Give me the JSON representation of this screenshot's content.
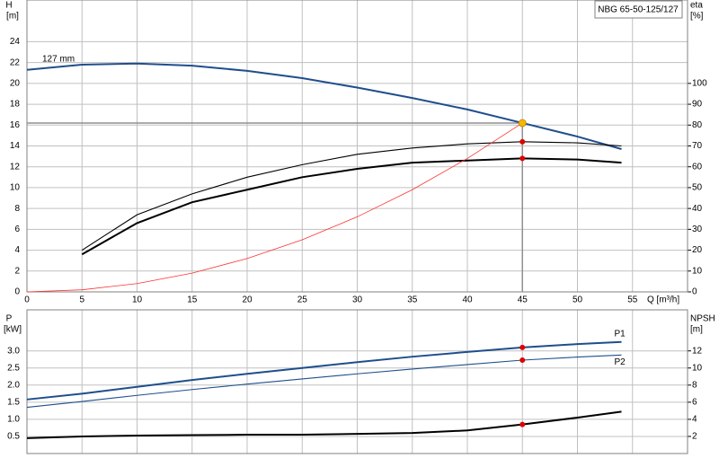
{
  "chart_data": [
    {
      "type": "line",
      "title": "NBG 65-50-125/127",
      "ylabel": "H",
      "yunit": "[m]",
      "y2label": "eta",
      "y2unit": "[%]",
      "xlabel": "Q [m³/h]",
      "x": [
        0,
        5,
        10,
        15,
        20,
        25,
        30,
        35,
        40,
        45,
        50,
        54
      ],
      "xlim": [
        0,
        60
      ],
      "xticks": [
        0,
        5,
        10,
        15,
        20,
        25,
        30,
        35,
        40,
        45,
        50,
        55
      ],
      "ylim": [
        0,
        28
      ],
      "yticks": [
        0,
        2,
        4,
        6,
        8,
        10,
        12,
        14,
        16,
        18,
        20,
        22,
        24
      ],
      "y2lim": [
        0,
        140
      ],
      "y2ticks": [
        0,
        10,
        20,
        30,
        40,
        50,
        60,
        70,
        80,
        90,
        100
      ],
      "grid": true,
      "series": [
        {
          "name": "127 mm",
          "color": "#1f4e8c",
          "style": "thick",
          "marker_index": 9,
          "marker_color": "#f5b800",
          "reference_lines": true,
          "values": [
            21.3,
            21.8,
            21.9,
            21.7,
            21.2,
            20.5,
            19.6,
            18.6,
            17.5,
            16.2,
            14.9,
            13.7
          ]
        },
        {
          "color": "#000000",
          "style": "thin",
          "axis": "y2",
          "marker_index": 9,
          "marker_color": "#e00000",
          "values": [
            null,
            20,
            37,
            47,
            55,
            61,
            66,
            69,
            71,
            72,
            71.5,
            70
          ]
        },
        {
          "color": "#000000",
          "style": "thick",
          "axis": "y2",
          "marker_index": 9,
          "marker_color": "#e00000",
          "values": [
            null,
            18,
            33,
            43,
            49,
            55,
            59,
            62,
            63,
            64,
            63.5,
            62
          ]
        },
        {
          "color": "#ff3030",
          "style": "hair",
          "values": [
            0,
            0.2,
            0.8,
            1.8,
            3.2,
            5,
            7.2,
            9.8,
            12.8,
            16.2,
            null,
            null
          ]
        }
      ]
    },
    {
      "type": "line",
      "ylabel": "P",
      "yunit": "[kW]",
      "y2label": "NPSH",
      "y2unit": "[m]",
      "x": [
        0,
        5,
        10,
        15,
        20,
        25,
        30,
        35,
        40,
        45,
        50,
        54
      ],
      "xlim": [
        0,
        60
      ],
      "xticks": [
        0,
        5,
        10,
        15,
        20,
        25,
        30,
        35,
        40,
        45,
        50,
        55
      ],
      "ylim": [
        0,
        4.2
      ],
      "yticks": [
        0.5,
        {
          "value": 1,
          "label": "1.0"
        },
        1.5,
        {
          "value": 2,
          "label": "2.0"
        },
        2.5,
        {
          "value": 3,
          "label": "3.0"
        }
      ],
      "y2lim": [
        0,
        16.8
      ],
      "y2ticks": [
        2,
        4,
        6,
        8,
        10,
        12
      ],
      "grid": true,
      "series": [
        {
          "name": "P1",
          "color": "#1f4e8c",
          "style": "thick",
          "marker_index": 9,
          "marker_color": "#e00000",
          "values": [
            1.58,
            1.75,
            1.95,
            2.15,
            2.33,
            2.5,
            2.67,
            2.83,
            2.97,
            3.1,
            3.2,
            3.26
          ]
        },
        {
          "name": "P2",
          "color": "#1f4e8c",
          "style": "thin",
          "marker_index": 9,
          "marker_color": "#e00000",
          "values": [
            1.35,
            1.52,
            1.7,
            1.87,
            2.03,
            2.18,
            2.33,
            2.47,
            2.6,
            2.73,
            2.82,
            2.88
          ]
        },
        {
          "color": "#000000",
          "style": "thick",
          "axis": "y2",
          "marker_index": 9,
          "marker_color": "#e00000",
          "values": [
            1.8,
            2.0,
            2.1,
            2.15,
            2.2,
            2.2,
            2.3,
            2.4,
            2.7,
            3.4,
            4.2,
            4.9
          ]
        }
      ]
    }
  ]
}
